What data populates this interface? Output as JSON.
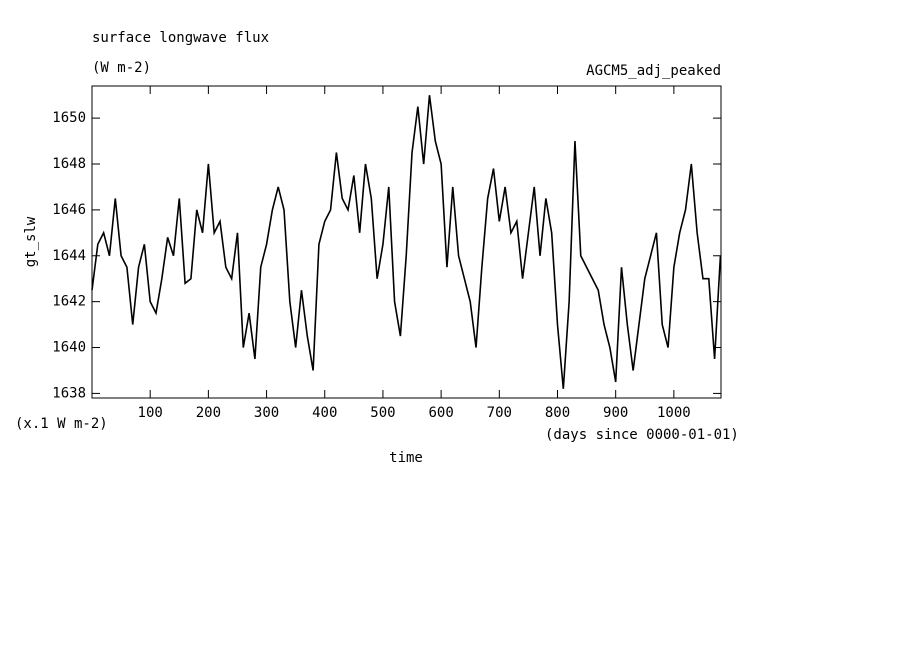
{
  "chart_data": {
    "type": "line",
    "title": "surface longwave flux",
    "subtitle": "(W m-2)",
    "annotation": "AGCM5_adj_peaked",
    "y_unit_note": "(x.1 W m-2)",
    "x_unit_note": "(days since 0000-01-01)",
    "xlabel": "time",
    "ylabel": "gt_slw",
    "x": [
      0,
      10,
      20,
      30,
      40,
      50,
      60,
      70,
      80,
      90,
      100,
      110,
      120,
      130,
      140,
      150,
      160,
      170,
      180,
      190,
      200,
      210,
      220,
      230,
      240,
      250,
      260,
      270,
      280,
      290,
      300,
      310,
      320,
      330,
      340,
      350,
      360,
      370,
      380,
      390,
      400,
      410,
      420,
      430,
      440,
      450,
      460,
      470,
      480,
      490,
      500,
      510,
      520,
      530,
      540,
      550,
      560,
      570,
      580,
      590,
      600,
      610,
      620,
      630,
      640,
      650,
      660,
      670,
      680,
      690,
      700,
      710,
      720,
      730,
      740,
      750,
      760,
      770,
      780,
      790,
      800,
      810,
      820,
      830,
      840,
      850,
      860,
      870,
      880,
      890,
      900,
      910,
      920,
      930,
      940,
      950,
      960,
      970,
      980,
      990,
      1000,
      1010,
      1020,
      1030,
      1040,
      1050,
      1060,
      1070,
      1080
    ],
    "series": [
      {
        "name": "gt_slw",
        "color": "#000000",
        "values": [
          1642.5,
          1644.5,
          1645,
          1644,
          1646.5,
          1644,
          1643.5,
          1641,
          1643.5,
          1644.5,
          1642,
          1641.5,
          1643,
          1644.8,
          1644,
          1646.5,
          1642.8,
          1643,
          1646,
          1645,
          1648,
          1645,
          1645.5,
          1643.5,
          1643,
          1645,
          1640,
          1641.5,
          1639.5,
          1643.5,
          1644.5,
          1646,
          1647,
          1646,
          1642,
          1640,
          1642.5,
          1640.5,
          1639,
          1644.5,
          1645.5,
          1646,
          1648.5,
          1646.5,
          1646,
          1647.5,
          1645,
          1648,
          1646.5,
          1643,
          1644.5,
          1647,
          1642,
          1640.5,
          1644,
          1648.5,
          1650.5,
          1648,
          1651,
          1649,
          1648,
          1643.5,
          1647,
          1644,
          1643,
          1642,
          1640,
          1643.5,
          1646.5,
          1647.8,
          1645.5,
          1647,
          1645,
          1645.5,
          1643,
          1645,
          1647,
          1644,
          1646.5,
          1645,
          1641,
          1638.2,
          1642,
          1649,
          1644,
          1643.5,
          1643,
          1642.5,
          1641,
          1640,
          1638.5,
          1643.5,
          1641,
          1639,
          1641,
          1643,
          1644,
          1645,
          1641,
          1640,
          1643.5,
          1645,
          1646,
          1648,
          1645,
          1643,
          1643,
          1639.5,
          1644
        ]
      }
    ],
    "xlim": [
      0,
      1081
    ],
    "ylim": [
      1637.8,
      1651.4
    ],
    "xticks": [
      100,
      200,
      300,
      400,
      500,
      600,
      700,
      800,
      900,
      1000
    ],
    "yticks": [
      1638,
      1640,
      1642,
      1644,
      1646,
      1648,
      1650
    ]
  }
}
